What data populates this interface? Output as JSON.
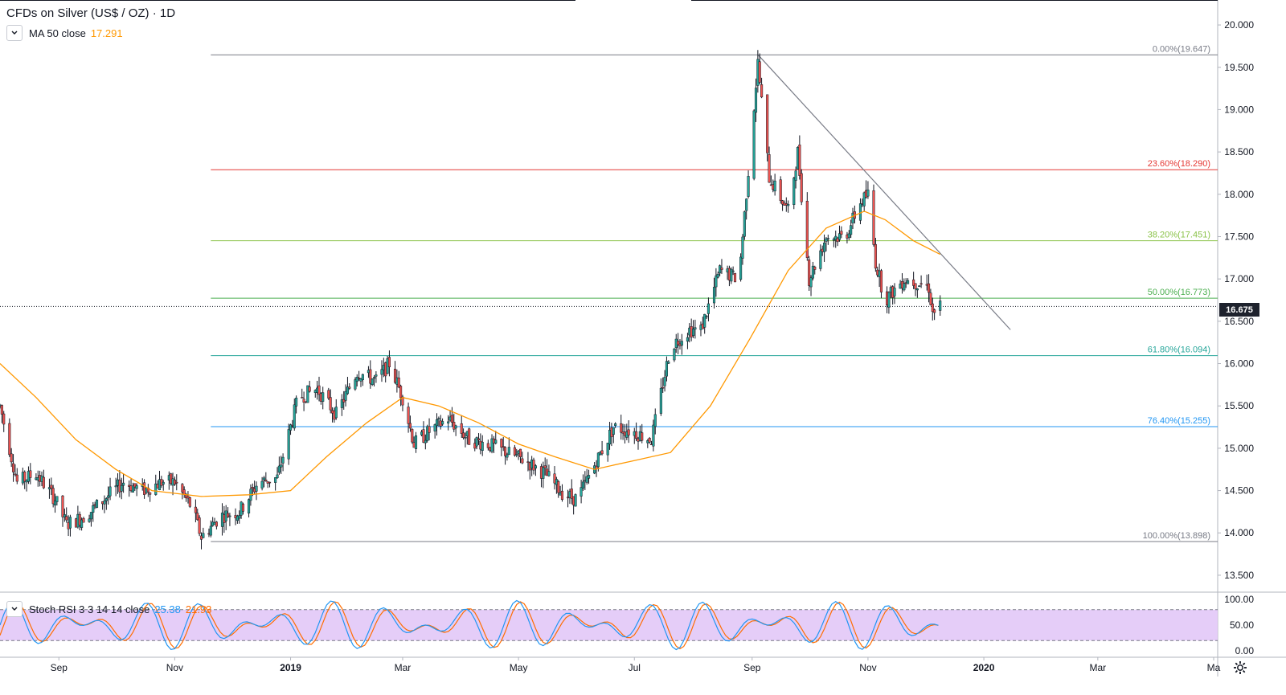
{
  "header": {
    "title": "CFDs on Silver (US$ / OZ) · 1D",
    "ma_label": "MA 50 close",
    "ma_value": "17.291"
  },
  "oscillator": {
    "label": "Stoch RSI 3 3 14 14 close",
    "k_value": "25.38",
    "d_value": "21.93",
    "axis_ticks": [
      "100.00",
      "50.00",
      "0.00"
    ]
  },
  "current_price": "16.675",
  "colors": {
    "up": "#26a69a",
    "down": "#ef5350",
    "ma": "#ff9800",
    "k_line": "#2196f3",
    "d_line": "#ff6d00",
    "osc_fill": "#e1c4f7"
  },
  "chart_data": {
    "type": "candlestick",
    "ylim": [
      13.3,
      20.2
    ],
    "y_ticks": [
      "20.000",
      "19.500",
      "19.000",
      "18.500",
      "18.000",
      "17.500",
      "17.000",
      "16.500",
      "16.000",
      "15.500",
      "15.000",
      "14.500",
      "14.000",
      "13.500"
    ],
    "x_ticks": [
      "Sep",
      "Nov",
      "2019",
      "Mar",
      "May",
      "Jul",
      "Sep",
      "Nov",
      "2020",
      "Mar",
      "Ma"
    ],
    "fibonacci": [
      {
        "label": "0.00%(19.647)",
        "value": 19.647,
        "color": "#787b86"
      },
      {
        "label": "23.60%(18.290)",
        "value": 18.29,
        "color": "#e53935"
      },
      {
        "label": "38.20%(17.451)",
        "value": 17.451,
        "color": "#8bc34a"
      },
      {
        "label": "50.00%(16.773)",
        "value": 16.773,
        "color": "#4caf50"
      },
      {
        "label": "61.80%(16.094)",
        "value": 16.094,
        "color": "#26a69a"
      },
      {
        "label": "76.40%(15.255)",
        "value": 15.255,
        "color": "#2196f3"
      },
      {
        "label": "100.00%(13.898)",
        "value": 13.898,
        "color": "#787b86"
      }
    ],
    "trendline": {
      "start": {
        "date": "2019-09-04",
        "value": 19.65
      },
      "end": {
        "date": "2020-01-15",
        "value": 16.4
      }
    },
    "price_path": [
      [
        "2018-08-01",
        15.5
      ],
      [
        "2018-08-10",
        14.6
      ],
      [
        "2018-08-20",
        14.7
      ],
      [
        "2018-08-30",
        14.4
      ],
      [
        "2018-09-05",
        14.1
      ],
      [
        "2018-09-15",
        14.2
      ],
      [
        "2018-09-25",
        14.4
      ],
      [
        "2018-10-05",
        14.6
      ],
      [
        "2018-10-15",
        14.5
      ],
      [
        "2018-10-25",
        14.6
      ],
      [
        "2018-11-01",
        14.6
      ],
      [
        "2018-11-10",
        14.3
      ],
      [
        "2018-11-15",
        13.95
      ],
      [
        "2018-11-25",
        14.2
      ],
      [
        "2018-12-05",
        14.25
      ],
      [
        "2018-12-15",
        14.6
      ],
      [
        "2018-12-25",
        14.65
      ],
      [
        "2019-01-05",
        15.6
      ],
      [
        "2019-01-15",
        15.7
      ],
      [
        "2019-01-25",
        15.4
      ],
      [
        "2019-02-05",
        15.9
      ],
      [
        "2019-02-15",
        15.8
      ],
      [
        "2019-02-22",
        16.0
      ],
      [
        "2019-03-01",
        15.6
      ],
      [
        "2019-03-07",
        15.05
      ],
      [
        "2019-03-15",
        15.2
      ],
      [
        "2019-03-25",
        15.35
      ],
      [
        "2019-04-05",
        15.1
      ],
      [
        "2019-04-15",
        15.05
      ],
      [
        "2019-04-25",
        14.95
      ],
      [
        "2019-05-05",
        14.85
      ],
      [
        "2019-05-15",
        14.7
      ],
      [
        "2019-05-25",
        14.45
      ],
      [
        "2019-06-01",
        14.4
      ],
      [
        "2019-06-10",
        14.8
      ],
      [
        "2019-06-20",
        15.25
      ],
      [
        "2019-06-30",
        15.2
      ],
      [
        "2019-07-10",
        15.1
      ],
      [
        "2019-07-20",
        16.2
      ],
      [
        "2019-07-30",
        16.4
      ],
      [
        "2019-08-05",
        16.4
      ],
      [
        "2019-08-15",
        17.1
      ],
      [
        "2019-08-25",
        17.0
      ],
      [
        "2019-09-04",
        19.55
      ],
      [
        "2019-09-10",
        18.2
      ],
      [
        "2019-09-20",
        17.8
      ],
      [
        "2019-09-25",
        18.5
      ],
      [
        "2019-10-01",
        17.0
      ],
      [
        "2019-10-10",
        17.5
      ],
      [
        "2019-10-20",
        17.5
      ],
      [
        "2019-10-28",
        17.9
      ],
      [
        "2019-11-01",
        18.0
      ],
      [
        "2019-11-05",
        17.2
      ],
      [
        "2019-11-10",
        16.75
      ],
      [
        "2019-11-20",
        17.0
      ],
      [
        "2019-11-28",
        16.95
      ],
      [
        "2019-12-03",
        16.9
      ],
      [
        "2019-12-05",
        16.6
      ],
      [
        "2019-12-09",
        16.675
      ]
    ],
    "ma50_path": [
      [
        "2018-08-01",
        16.0
      ],
      [
        "2018-08-20",
        15.6
      ],
      [
        "2018-09-10",
        15.1
      ],
      [
        "2018-10-01",
        14.75
      ],
      [
        "2018-10-20",
        14.5
      ],
      [
        "2018-11-15",
        14.43
      ],
      [
        "2018-12-10",
        14.45
      ],
      [
        "2019-01-01",
        14.5
      ],
      [
        "2019-01-20",
        14.9
      ],
      [
        "2019-02-10",
        15.3
      ],
      [
        "2019-03-01",
        15.6
      ],
      [
        "2019-03-20",
        15.5
      ],
      [
        "2019-04-10",
        15.3
      ],
      [
        "2019-05-01",
        15.05
      ],
      [
        "2019-05-20",
        14.9
      ],
      [
        "2019-06-10",
        14.75
      ],
      [
        "2019-06-30",
        14.85
      ],
      [
        "2019-07-20",
        14.95
      ],
      [
        "2019-08-10",
        15.5
      ],
      [
        "2019-08-31",
        16.3
      ],
      [
        "2019-09-20",
        17.1
      ],
      [
        "2019-10-10",
        17.6
      ],
      [
        "2019-10-30",
        17.8
      ],
      [
        "2019-11-10",
        17.7
      ],
      [
        "2019-11-25",
        17.45
      ],
      [
        "2019-12-09",
        17.29
      ]
    ]
  }
}
